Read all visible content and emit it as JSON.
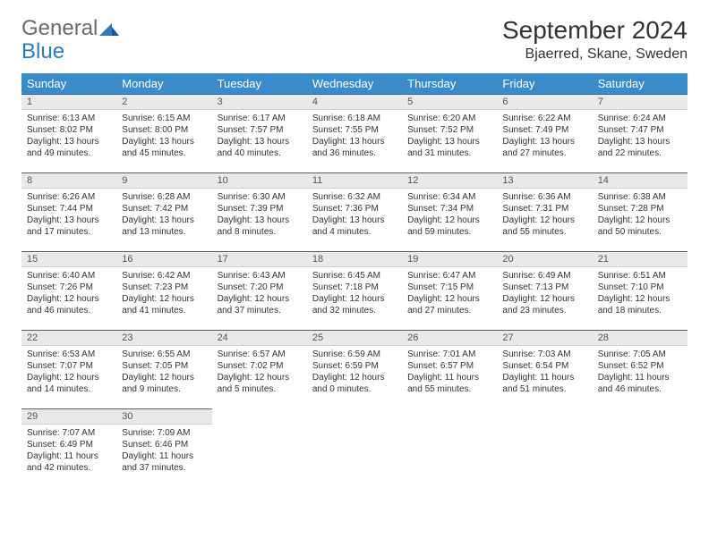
{
  "logo": {
    "general": "General",
    "blue": "Blue"
  },
  "title": "September 2024",
  "location": "Bjaerred, Skane, Sweden",
  "header_bg": "#3b8bc9",
  "daynum_bg": "#e9e9e9",
  "border_color": "#2b6a9e",
  "weekdays": [
    "Sunday",
    "Monday",
    "Tuesday",
    "Wednesday",
    "Thursday",
    "Friday",
    "Saturday"
  ],
  "days": [
    {
      "n": "1",
      "sr": "6:13 AM",
      "ss": "8:02 PM",
      "dl": "13 hours and 49 minutes."
    },
    {
      "n": "2",
      "sr": "6:15 AM",
      "ss": "8:00 PM",
      "dl": "13 hours and 45 minutes."
    },
    {
      "n": "3",
      "sr": "6:17 AM",
      "ss": "7:57 PM",
      "dl": "13 hours and 40 minutes."
    },
    {
      "n": "4",
      "sr": "6:18 AM",
      "ss": "7:55 PM",
      "dl": "13 hours and 36 minutes."
    },
    {
      "n": "5",
      "sr": "6:20 AM",
      "ss": "7:52 PM",
      "dl": "13 hours and 31 minutes."
    },
    {
      "n": "6",
      "sr": "6:22 AM",
      "ss": "7:49 PM",
      "dl": "13 hours and 27 minutes."
    },
    {
      "n": "7",
      "sr": "6:24 AM",
      "ss": "7:47 PM",
      "dl": "13 hours and 22 minutes."
    },
    {
      "n": "8",
      "sr": "6:26 AM",
      "ss": "7:44 PM",
      "dl": "13 hours and 17 minutes."
    },
    {
      "n": "9",
      "sr": "6:28 AM",
      "ss": "7:42 PM",
      "dl": "13 hours and 13 minutes."
    },
    {
      "n": "10",
      "sr": "6:30 AM",
      "ss": "7:39 PM",
      "dl": "13 hours and 8 minutes."
    },
    {
      "n": "11",
      "sr": "6:32 AM",
      "ss": "7:36 PM",
      "dl": "13 hours and 4 minutes."
    },
    {
      "n": "12",
      "sr": "6:34 AM",
      "ss": "7:34 PM",
      "dl": "12 hours and 59 minutes."
    },
    {
      "n": "13",
      "sr": "6:36 AM",
      "ss": "7:31 PM",
      "dl": "12 hours and 55 minutes."
    },
    {
      "n": "14",
      "sr": "6:38 AM",
      "ss": "7:28 PM",
      "dl": "12 hours and 50 minutes."
    },
    {
      "n": "15",
      "sr": "6:40 AM",
      "ss": "7:26 PM",
      "dl": "12 hours and 46 minutes."
    },
    {
      "n": "16",
      "sr": "6:42 AM",
      "ss": "7:23 PM",
      "dl": "12 hours and 41 minutes."
    },
    {
      "n": "17",
      "sr": "6:43 AM",
      "ss": "7:20 PM",
      "dl": "12 hours and 37 minutes."
    },
    {
      "n": "18",
      "sr": "6:45 AM",
      "ss": "7:18 PM",
      "dl": "12 hours and 32 minutes."
    },
    {
      "n": "19",
      "sr": "6:47 AM",
      "ss": "7:15 PM",
      "dl": "12 hours and 27 minutes."
    },
    {
      "n": "20",
      "sr": "6:49 AM",
      "ss": "7:13 PM",
      "dl": "12 hours and 23 minutes."
    },
    {
      "n": "21",
      "sr": "6:51 AM",
      "ss": "7:10 PM",
      "dl": "12 hours and 18 minutes."
    },
    {
      "n": "22",
      "sr": "6:53 AM",
      "ss": "7:07 PM",
      "dl": "12 hours and 14 minutes."
    },
    {
      "n": "23",
      "sr": "6:55 AM",
      "ss": "7:05 PM",
      "dl": "12 hours and 9 minutes."
    },
    {
      "n": "24",
      "sr": "6:57 AM",
      "ss": "7:02 PM",
      "dl": "12 hours and 5 minutes."
    },
    {
      "n": "25",
      "sr": "6:59 AM",
      "ss": "6:59 PM",
      "dl": "12 hours and 0 minutes."
    },
    {
      "n": "26",
      "sr": "7:01 AM",
      "ss": "6:57 PM",
      "dl": "11 hours and 55 minutes."
    },
    {
      "n": "27",
      "sr": "7:03 AM",
      "ss": "6:54 PM",
      "dl": "11 hours and 51 minutes."
    },
    {
      "n": "28",
      "sr": "7:05 AM",
      "ss": "6:52 PM",
      "dl": "11 hours and 46 minutes."
    },
    {
      "n": "29",
      "sr": "7:07 AM",
      "ss": "6:49 PM",
      "dl": "11 hours and 42 minutes."
    },
    {
      "n": "30",
      "sr": "7:09 AM",
      "ss": "6:46 PM",
      "dl": "11 hours and 37 minutes."
    }
  ],
  "labels": {
    "sunrise": "Sunrise:",
    "sunset": "Sunset:",
    "daylight": "Daylight:"
  },
  "start_offset": 0,
  "total_cells": 35
}
